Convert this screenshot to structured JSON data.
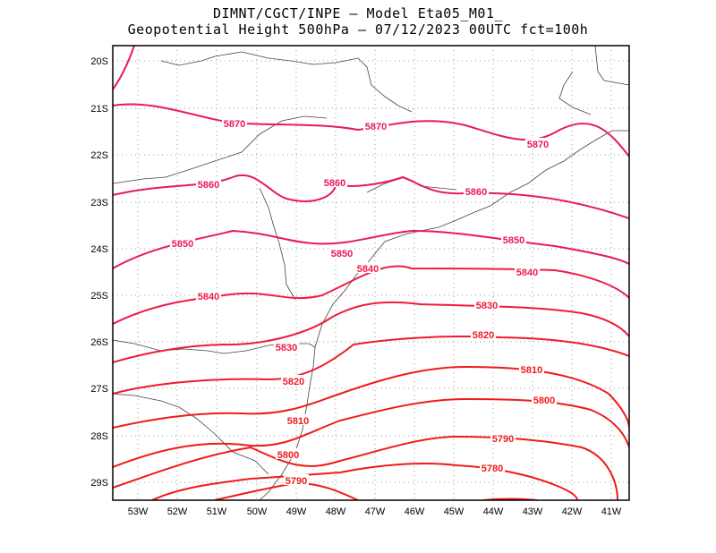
{
  "title": {
    "line1": "DIMNT/CGCT/INPE –   Model Eta05_M01_",
    "line2": "Geopotential Height 500hPa –  07/12/2023 00UTC fct=100h"
  },
  "axes": {
    "lat_labels": [
      "20S",
      "21S",
      "22S",
      "23S",
      "24S",
      "25S",
      "26S",
      "27S",
      "28S",
      "29S"
    ],
    "lon_labels": [
      "53W",
      "52W",
      "51W",
      "50W",
      "49W",
      "48W",
      "47W",
      "46W",
      "45W",
      "44W",
      "43W",
      "42W",
      "41W"
    ]
  },
  "contour_labels": [
    {
      "text": "5870",
      "color": "#e8195f"
    },
    {
      "text": "5870",
      "color": "#e8195f"
    },
    {
      "text": "5870",
      "color": "#e8195f"
    },
    {
      "text": "5860",
      "color": "#e8195f"
    },
    {
      "text": "5860",
      "color": "#e8195f"
    },
    {
      "text": "5860",
      "color": "#e8195f"
    },
    {
      "text": "5850",
      "color": "#e8195f"
    },
    {
      "text": "5850",
      "color": "#e8195f"
    },
    {
      "text": "5850",
      "color": "#e8195f"
    },
    {
      "text": "5840",
      "color": "#f01a4a"
    },
    {
      "text": "5840",
      "color": "#f01a4a"
    },
    {
      "text": "5840",
      "color": "#f01a4a"
    },
    {
      "text": "5830",
      "color": "#f01a3a"
    },
    {
      "text": "5830",
      "color": "#f01a3a"
    },
    {
      "text": "5820",
      "color": "#f01a2a"
    },
    {
      "text": "5820",
      "color": "#f01a2a"
    },
    {
      "text": "5810",
      "color": "#f01a1a"
    },
    {
      "text": "5810",
      "color": "#f01a1a"
    },
    {
      "text": "5800",
      "color": "#f01a1a"
    },
    {
      "text": "5800",
      "color": "#f01a1a"
    },
    {
      "text": "5790",
      "color": "#f01a1a"
    },
    {
      "text": "5790",
      "color": "#f01a1a"
    },
    {
      "text": "5780",
      "color": "#f01a1a"
    }
  ]
}
